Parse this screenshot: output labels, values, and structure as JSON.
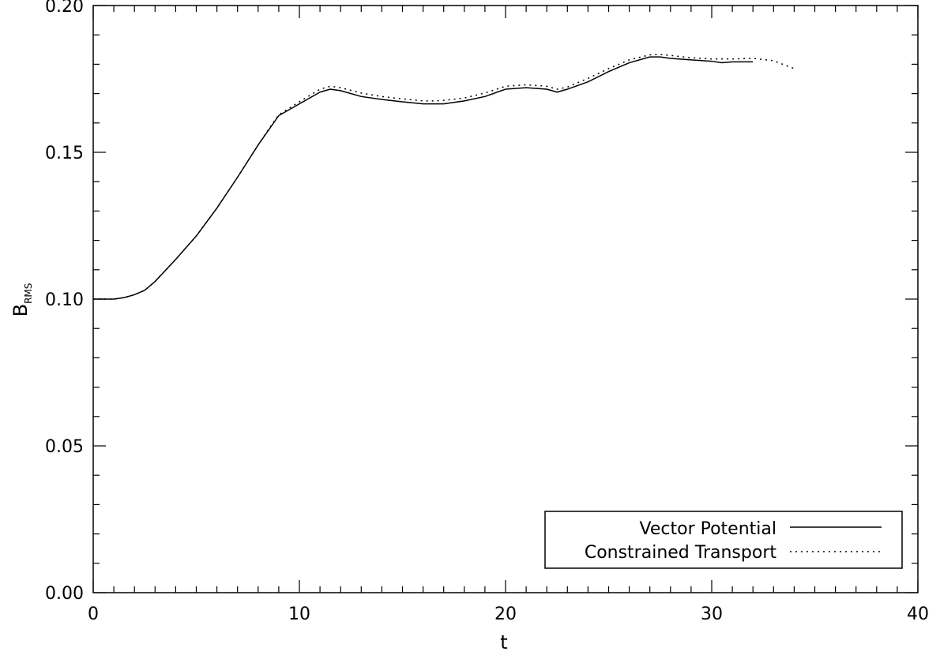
{
  "chart_data": {
    "type": "line",
    "xlabel": "t",
    "ylabel_main": "B",
    "ylabel_sub": "RMS",
    "xlim": [
      0,
      40
    ],
    "ylim": [
      0.0,
      0.2
    ],
    "x_ticks": [
      0,
      10,
      20,
      30,
      40
    ],
    "x_tick_labels": [
      "0",
      "10",
      "20",
      "30",
      "40"
    ],
    "y_ticks": [
      0.0,
      0.05,
      0.1,
      0.15,
      0.2
    ],
    "y_tick_labels": [
      "0.00",
      "0.05",
      "0.10",
      "0.15",
      "0.20"
    ],
    "grid": false,
    "legend_position": "bottom-right",
    "series": [
      {
        "name": "Vector Potential",
        "style": "solid",
        "x": [
          0,
          1,
          1.5,
          2,
          2.5,
          3,
          4,
          5,
          6,
          7,
          8,
          8.5,
          9,
          10,
          11,
          11.5,
          12,
          13,
          14,
          15,
          16,
          16.5,
          17,
          18,
          19,
          20,
          21,
          22,
          22.5,
          23,
          24,
          25,
          26,
          27,
          27.5,
          28,
          29,
          30,
          30.5,
          31,
          32
        ],
        "y": [
          0.1,
          0.1,
          0.1005,
          0.1015,
          0.103,
          0.106,
          0.1135,
          0.1215,
          0.131,
          0.1415,
          0.1525,
          0.1575,
          0.1625,
          0.1665,
          0.1705,
          0.1715,
          0.171,
          0.169,
          0.168,
          0.1672,
          0.1665,
          0.1665,
          0.1665,
          0.1675,
          0.169,
          0.1715,
          0.172,
          0.1715,
          0.1705,
          0.1715,
          0.174,
          0.1775,
          0.1805,
          0.1825,
          0.1825,
          0.182,
          0.1815,
          0.181,
          0.1805,
          0.1808,
          0.1808
        ]
      },
      {
        "name": "Constrained Transport",
        "style": "dotted",
        "x": [
          0,
          1,
          1.5,
          2,
          2.5,
          3,
          4,
          5,
          6,
          7,
          8,
          8.5,
          9,
          10,
          11,
          11.5,
          12,
          13,
          14,
          15,
          16,
          16.5,
          17,
          18,
          19,
          20,
          21,
          22,
          22.5,
          23,
          24,
          25,
          26,
          27,
          27.5,
          28,
          29,
          30,
          31,
          32,
          33,
          34
        ],
        "y": [
          0.1,
          0.1,
          0.1005,
          0.1015,
          0.103,
          0.106,
          0.1135,
          0.1215,
          0.131,
          0.1415,
          0.1525,
          0.1578,
          0.1628,
          0.1672,
          0.1715,
          0.1725,
          0.172,
          0.1702,
          0.169,
          0.1682,
          0.1675,
          0.1675,
          0.1677,
          0.1685,
          0.1702,
          0.1725,
          0.173,
          0.1725,
          0.1715,
          0.1722,
          0.1752,
          0.1785,
          0.1815,
          0.1832,
          0.1833,
          0.183,
          0.1822,
          0.1818,
          0.1818,
          0.182,
          0.1812,
          0.1785
        ]
      }
    ]
  }
}
